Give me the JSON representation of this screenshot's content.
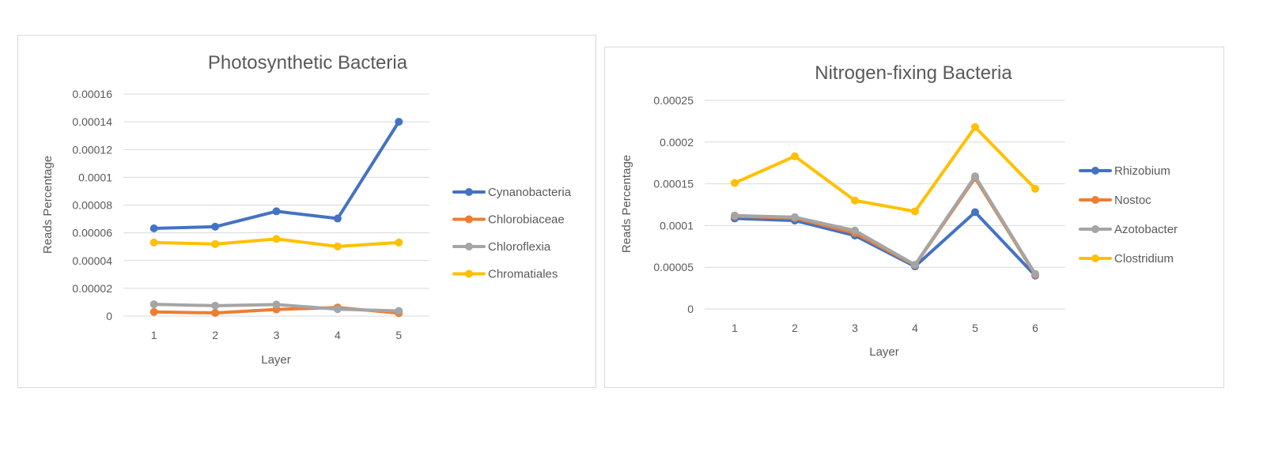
{
  "chart_data": [
    {
      "type": "line",
      "title": "Photosynthetic Bacteria",
      "xlabel": "Layer",
      "ylabel": "Reads Percentage",
      "categories": [
        "1",
        "2",
        "3",
        "4",
        "5"
      ],
      "y_ticks": [
        "0",
        "0.00002",
        "0.00004",
        "0.00006",
        "0.00008",
        "0.0001",
        "0.00012",
        "0.00014",
        "0.00016"
      ],
      "ylim": [
        0,
        0.00016
      ],
      "grid": true,
      "legend_position": "right",
      "series": [
        {
          "name": "Cynanobacteria",
          "color": "#4472c4",
          "values": [
            6.32e-05,
            6.44e-05,
            7.55e-05,
            7.03e-05,
            0.00014
          ]
        },
        {
          "name": "Chlorobiaceae",
          "color": "#ed7d31",
          "values": [
            3e-06,
            2.3e-06,
            4.8e-06,
            6.2e-06,
            2.1e-06
          ]
        },
        {
          "name": "Chloroflexia",
          "color": "#a5a5a5",
          "values": [
            8.5e-06,
            7.5e-06,
            8.3e-06,
            5e-06,
            3.7e-06
          ]
        },
        {
          "name": "Chromatiales",
          "color": "#ffc000",
          "values": [
            5.3e-05,
            5.19e-05,
            5.56e-05,
            5.02e-05,
            5.3e-05
          ]
        }
      ]
    },
    {
      "type": "line",
      "title": "Nitrogen-fixing Bacteria",
      "xlabel": "Layer",
      "ylabel": "Reads Percentage",
      "categories": [
        "1",
        "2",
        "3",
        "4",
        "5",
        "6"
      ],
      "y_ticks": [
        "0",
        "0.00005",
        "0.0001",
        "0.00015",
        "0.0002",
        "0.00025"
      ],
      "ylim": [
        0,
        0.00025
      ],
      "grid": true,
      "legend_position": "right",
      "series": [
        {
          "name": "Rhizobium",
          "color": "#4472c4",
          "values": [
            0.0001085,
            0.000106,
            8.8e-05,
            5.1e-05,
            0.000116,
            4e-05
          ]
        },
        {
          "name": "Nostoc",
          "color": "#ed7d31",
          "values": [
            0.000111,
            0.000109,
            9.1e-05,
            5.25e-05,
            0.000157,
            4.1e-05
          ]
        },
        {
          "name": "Azotobacter",
          "color": "#a5a5a5",
          "values": [
            0.000112,
            0.00011,
            9.4e-05,
            5.3e-05,
            0.000159,
            4.2e-05
          ]
        },
        {
          "name": "Clostridium",
          "color": "#ffc000",
          "values": [
            0.000151,
            0.000183,
            0.00013,
            0.000117,
            0.000218,
            0.000144
          ]
        }
      ]
    }
  ]
}
